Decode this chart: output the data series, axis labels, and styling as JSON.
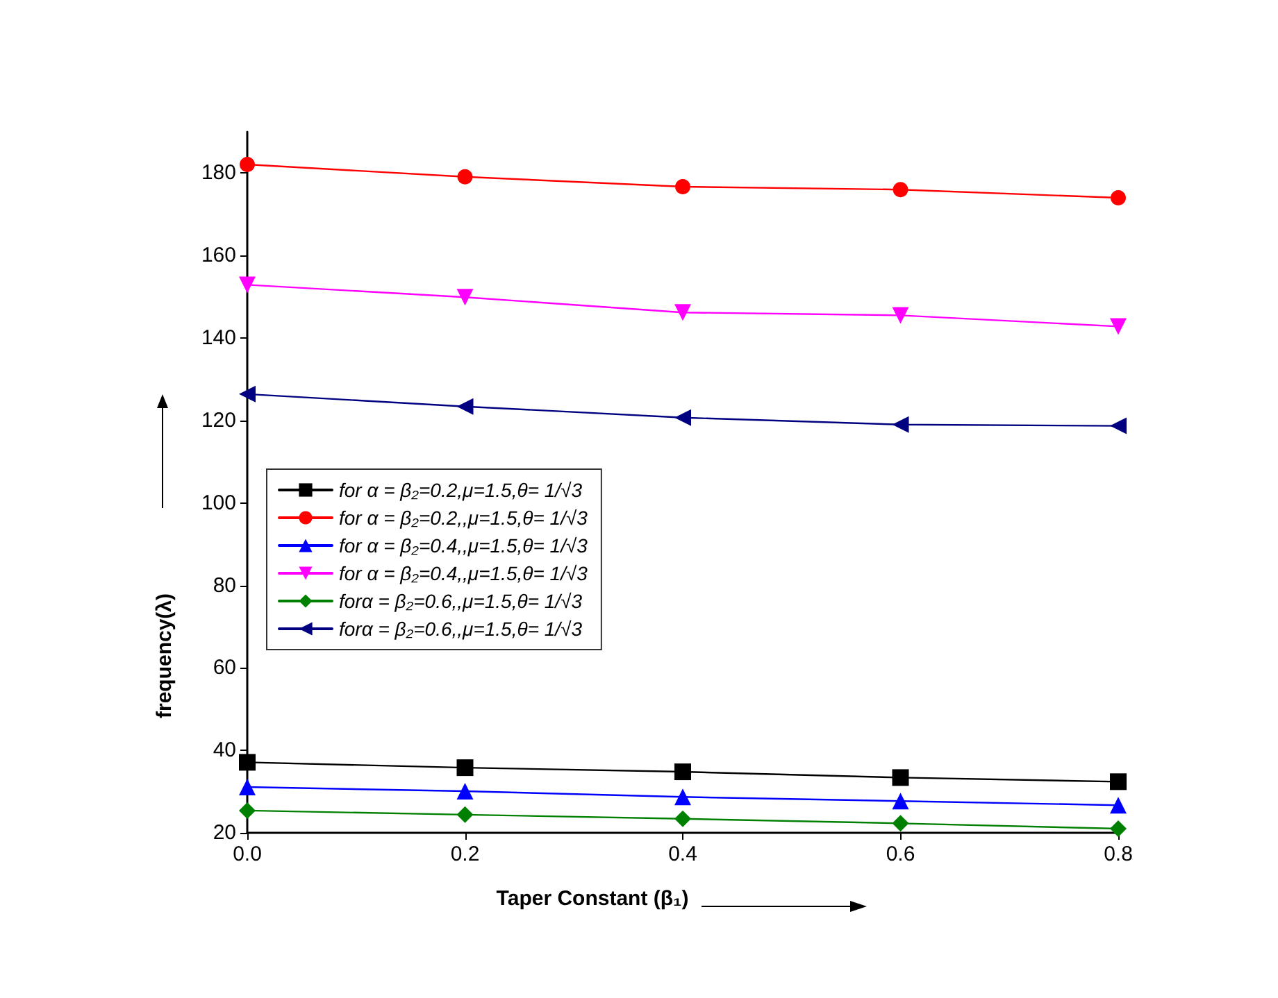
{
  "chart_data": {
    "type": "line",
    "xlabel": "Taper Constant (β₁)",
    "ylabel": "frequency(λ)",
    "x": [
      0,
      0.2,
      0.4,
      0.6,
      0.8
    ],
    "xlim": [
      0,
      0.8
    ],
    "xticks": [
      {
        "value": 0,
        "label": "0.0"
      },
      0.2,
      0.4,
      0.6,
      0.8
    ],
    "ylim": [
      20,
      190
    ],
    "yticks": [
      20,
      40,
      60,
      80,
      100,
      120,
      140,
      160,
      180
    ],
    "grid": false,
    "legend": "left",
    "line_style": "solid",
    "series": [
      {
        "name": "for α = β₂=0.2,μ=1.5,θ= 1/√3",
        "color": "#000000",
        "marker": "square",
        "values": [
          37.1,
          35.8,
          34.8,
          33.4,
          32.4
        ]
      },
      {
        "name": "for α = β₂=0.2,,μ=1.5,θ= 1/√3",
        "color": "#ff0000",
        "marker": "circle",
        "values": [
          182.1,
          179.1,
          176.7,
          176.0,
          174.0
        ]
      },
      {
        "name": "for α = β₂=0.4,,μ=1.5,θ= 1/√3",
        "color": "#0000ff",
        "marker": "triangle",
        "values": [
          31.1,
          30.1,
          28.7,
          27.7,
          26.7
        ]
      },
      {
        "name": "for α = β₂=0.4,,μ=1.5,θ= 1/√3",
        "color": "#ff00ff",
        "marker": "triangle-down",
        "values": [
          152.9,
          149.9,
          146.2,
          145.5,
          142.8
        ]
      },
      {
        "name": "forα = β₂=0.6,,μ=1.5,θ= 1/√3",
        "color": "#008000",
        "marker": "diamond",
        "values": [
          25.4,
          24.4,
          23.4,
          22.3,
          21.0
        ]
      },
      {
        "name": "forα = β₂=0.6,,μ=1.5,θ= 1/√3",
        "color": "#000080",
        "marker": "triangle-left",
        "values": [
          126.4,
          123.4,
          120.7,
          119.0,
          118.7
        ]
      }
    ]
  }
}
